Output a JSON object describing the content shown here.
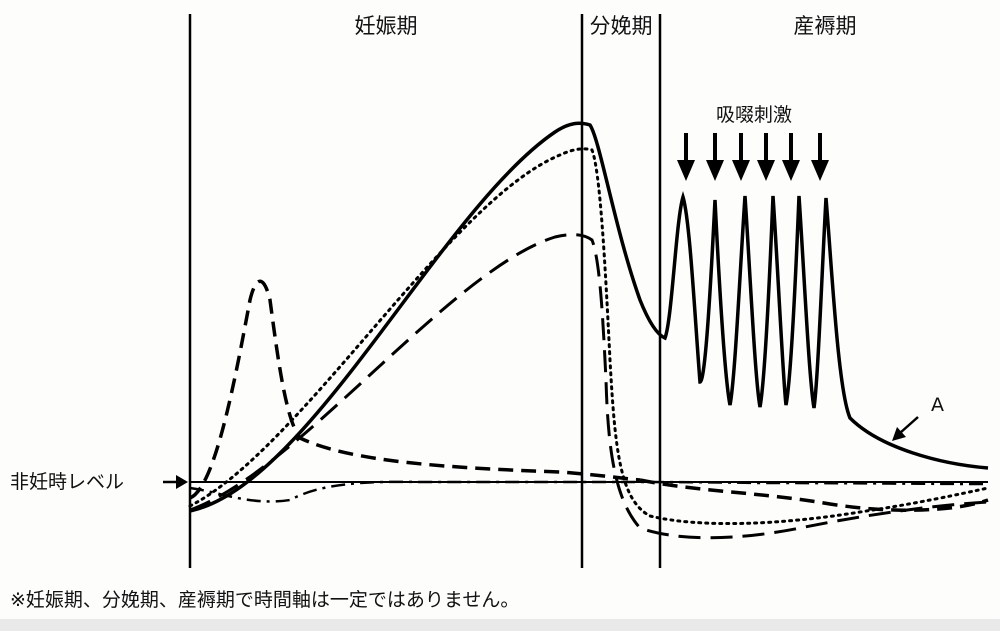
{
  "chart_data": {
    "type": "line",
    "periods": [
      "妊娠期",
      "分娩期",
      "産褥期"
    ],
    "baseline_label": "非妊時レベル",
    "stimulus_label": "吸啜刺激",
    "curve_label": "A",
    "stimulus_count": 6,
    "grid": false,
    "axes_ticks": false,
    "series": [
      {
        "style": "solid"
      },
      {
        "style": "dotted"
      },
      {
        "style": "dashed"
      },
      {
        "style": "dash-dot"
      }
    ]
  },
  "note": "※妊娠期、分娩期、産褥期で時間軸は一定ではありません。"
}
